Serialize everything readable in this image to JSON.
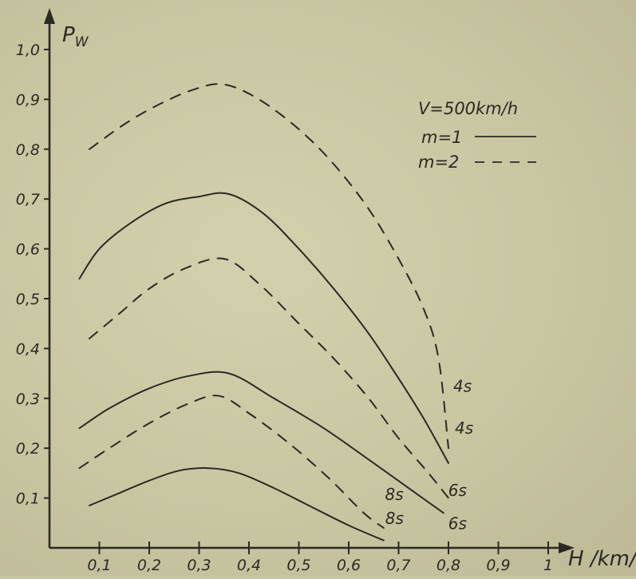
{
  "chart_data": {
    "type": "line",
    "title": "",
    "ylabel": "P_W",
    "ylabel_main": "P",
    "ylabel_sub": "W",
    "xlabel": "H /km/",
    "xlim": [
      0.0,
      1.0
    ],
    "ylim": [
      0.0,
      1.0
    ],
    "xticks": [
      "0,1",
      "0,2",
      "0,3",
      "0,4",
      "0,5",
      "0,6",
      "0,7",
      "0,8",
      "0,9",
      "1"
    ],
    "xtick_values": [
      0.1,
      0.2,
      0.3,
      0.4,
      0.5,
      0.6,
      0.7,
      0.8,
      0.9,
      1.0
    ],
    "yticks": [
      "0,1",
      "0,2",
      "0,3",
      "0,4",
      "0,5",
      "0,6",
      "0,7",
      "0,8",
      "0,9",
      "1,0"
    ],
    "ytick_values": [
      0.1,
      0.2,
      0.3,
      0.4,
      0.5,
      0.6,
      0.7,
      0.8,
      0.9,
      1.0
    ],
    "grid": false,
    "legend": {
      "title": "V=500km/h",
      "entries": [
        {
          "label": "m=1",
          "style": "solid"
        },
        {
          "label": "m=2",
          "style": "dashed"
        }
      ]
    },
    "series": [
      {
        "label": "4s",
        "style": "dashed",
        "x": [
          0.08,
          0.15,
          0.22,
          0.29,
          0.35,
          0.42,
          0.5,
          0.57,
          0.64,
          0.7,
          0.75,
          0.78,
          0.8
        ],
        "y": [
          0.8,
          0.85,
          0.89,
          0.92,
          0.93,
          0.9,
          0.84,
          0.77,
          0.68,
          0.58,
          0.48,
          0.38,
          0.2
        ]
      },
      {
        "label": "4s",
        "style": "solid",
        "x": [
          0.06,
          0.1,
          0.16,
          0.23,
          0.3,
          0.36,
          0.43,
          0.5,
          0.57,
          0.64,
          0.7,
          0.75,
          0.8
        ],
        "y": [
          0.54,
          0.6,
          0.65,
          0.69,
          0.705,
          0.71,
          0.67,
          0.6,
          0.52,
          0.43,
          0.34,
          0.26,
          0.17
        ]
      },
      {
        "label": "6s",
        "style": "dashed",
        "x": [
          0.08,
          0.14,
          0.2,
          0.27,
          0.35,
          0.42,
          0.5,
          0.57,
          0.64,
          0.7,
          0.76,
          0.8
        ],
        "y": [
          0.42,
          0.47,
          0.52,
          0.56,
          0.58,
          0.53,
          0.45,
          0.38,
          0.3,
          0.22,
          0.15,
          0.1
        ]
      },
      {
        "label": "6s",
        "style": "solid",
        "x": [
          0.06,
          0.12,
          0.2,
          0.28,
          0.36,
          0.45,
          0.55,
          0.65,
          0.72,
          0.79
        ],
        "y": [
          0.24,
          0.28,
          0.32,
          0.345,
          0.35,
          0.3,
          0.24,
          0.17,
          0.12,
          0.07
        ]
      },
      {
        "label": "8s",
        "style": "dashed",
        "x": [
          0.06,
          0.12,
          0.2,
          0.28,
          0.34,
          0.4,
          0.48,
          0.56,
          0.63,
          0.67
        ],
        "y": [
          0.16,
          0.2,
          0.25,
          0.29,
          0.305,
          0.27,
          0.21,
          0.14,
          0.07,
          0.04
        ]
      },
      {
        "label": "8s",
        "style": "solid",
        "x": [
          0.08,
          0.14,
          0.2,
          0.26,
          0.32,
          0.38,
          0.45,
          0.52,
          0.6,
          0.67
        ],
        "y": [
          0.085,
          0.11,
          0.135,
          0.155,
          0.16,
          0.15,
          0.12,
          0.085,
          0.045,
          0.015
        ]
      }
    ]
  },
  "colors": {
    "background": "#c9c6a2",
    "ink": "#2a2a24"
  }
}
